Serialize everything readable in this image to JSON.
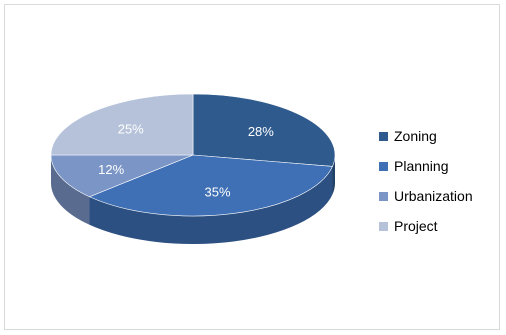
{
  "chart_data": {
    "type": "pie",
    "title": "",
    "legend_position": "right",
    "slices": [
      {
        "name": "Zoning",
        "value": 28,
        "label": "28%",
        "color": "#2f5a8e"
      },
      {
        "name": "Planning",
        "value": 35,
        "label": "35%",
        "color": "#3f6fb4"
      },
      {
        "name": "Urbanization",
        "value": 12,
        "label": "12%",
        "color": "#7b96c6"
      },
      {
        "name": "Project",
        "value": 25,
        "label": "25%",
        "color": "#b5c2da"
      }
    ]
  }
}
